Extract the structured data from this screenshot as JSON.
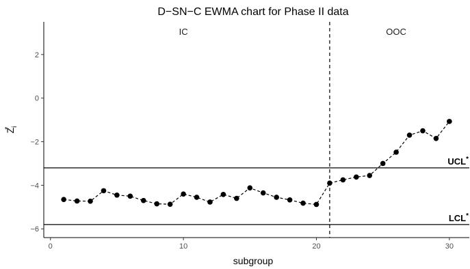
{
  "chart_data": {
    "type": "line",
    "title": "D−SN−C EWMA chart for Phase II data",
    "xlabel": "subgroup",
    "ylabel_main": "Z",
    "ylabel_sub": "i",
    "ylabel_sup": "*",
    "xlim": [
      -0.5,
      31.5
    ],
    "ylim": [
      -6.4,
      3.5
    ],
    "x_ticks": [
      0,
      10,
      20,
      30
    ],
    "x_tick_labels": [
      "0",
      "10",
      "20",
      "30"
    ],
    "y_ticks": [
      -6,
      -4,
      -2,
      0,
      2
    ],
    "y_tick_labels": [
      "−6",
      "−4",
      "−2",
      "0",
      "2"
    ],
    "grid": false,
    "x": [
      1,
      2,
      3,
      4,
      5,
      6,
      7,
      8,
      9,
      10,
      11,
      12,
      13,
      14,
      15,
      16,
      17,
      18,
      19,
      20,
      21,
      22,
      23,
      24,
      25,
      26,
      27,
      28,
      29,
      30
    ],
    "values": [
      -4.65,
      -4.72,
      -4.73,
      -4.25,
      -4.45,
      -4.5,
      -4.7,
      -4.85,
      -4.87,
      -4.4,
      -4.55,
      -4.77,
      -4.42,
      -4.6,
      -4.12,
      -4.35,
      -4.55,
      -4.67,
      -4.82,
      -4.88,
      -3.9,
      -3.75,
      -3.62,
      -3.55,
      -3.0,
      -2.48,
      -1.7,
      -1.5,
      -1.85,
      -1.07
    ],
    "ucl": {
      "label": "UCL",
      "sup": "*",
      "value": -3.2
    },
    "lcl": {
      "label": "LCL",
      "sup": "*",
      "value": -5.8
    },
    "change_point": 21,
    "regions": [
      {
        "label": "IC",
        "x": 10
      },
      {
        "label": "OOC",
        "x": 26
      }
    ],
    "region_label_y": 2.9
  }
}
